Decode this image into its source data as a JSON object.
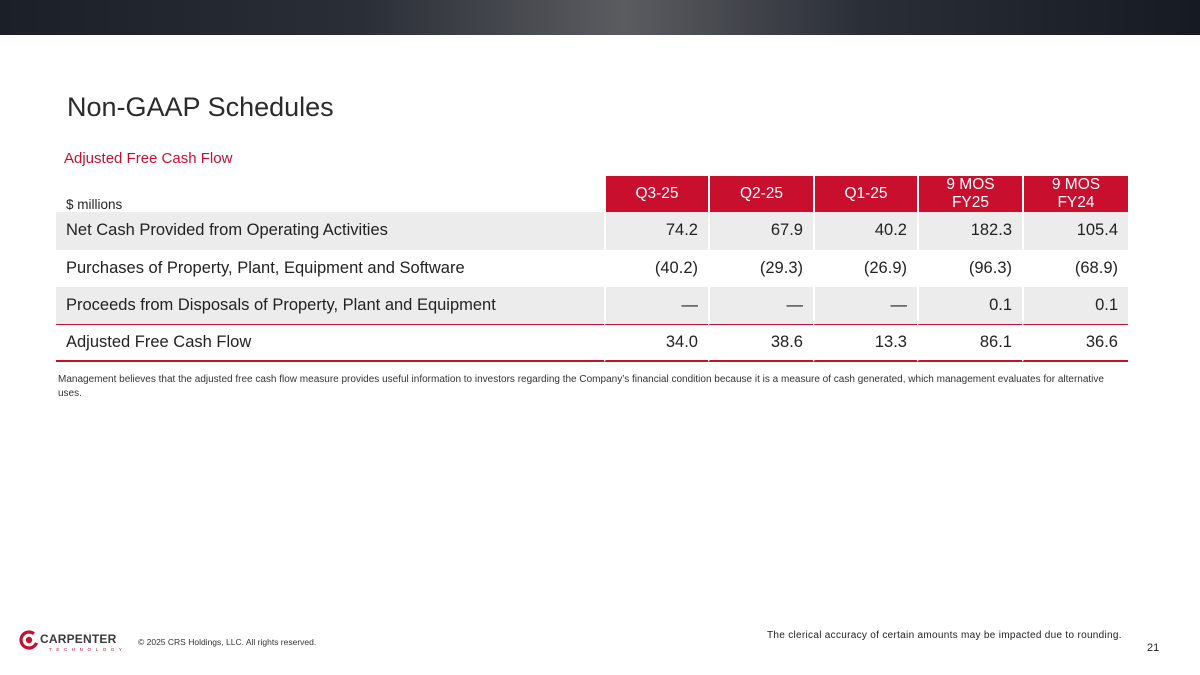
{
  "page": {
    "title": "Non-GAAP Schedules",
    "section_title": "Adjusted Free Cash Flow",
    "page_number": "21"
  },
  "table": {
    "unit_label": "$ millions",
    "columns": [
      "Q3-25",
      "Q2-25",
      "Q1-25",
      "9 MOS FY25",
      "9 MOS FY24"
    ],
    "rows": [
      {
        "label": "Net Cash Provided from Operating Activities",
        "values": [
          "74.2",
          "67.9",
          "40.2",
          "182.3",
          "105.4"
        ]
      },
      {
        "label": "Purchases of Property, Plant, Equipment and Software",
        "values": [
          "(40.2)",
          "(29.3)",
          "(26.9)",
          "(96.3)",
          "(68.9)"
        ]
      },
      {
        "label": "Proceeds from Disposals of Property, Plant and Equipment",
        "values": [
          "—",
          "—",
          "—",
          "0.1",
          "0.1"
        ]
      },
      {
        "label": "Adjusted Free Cash Flow",
        "values": [
          "34.0",
          "38.6",
          "13.3",
          "86.1",
          "36.6"
        ]
      }
    ]
  },
  "note": "Management believes that the adjusted free cash flow measure provides useful information to investors regarding the Company’s financial condition because it is a measure of cash generated, which management evaluates for alternative uses.",
  "footer": {
    "logo_text": "CARPENTER",
    "logo_subtext": "TECHNOLOGY",
    "copyright": "© 2025 CRS Holdings, LLC. All rights reserved.",
    "rounding_note": "The clerical accuracy of certain amounts may be impacted due to rounding."
  },
  "colors": {
    "accent": "#c8102e",
    "row_shade": "#ececec",
    "header_bar": "#1b1f27"
  }
}
